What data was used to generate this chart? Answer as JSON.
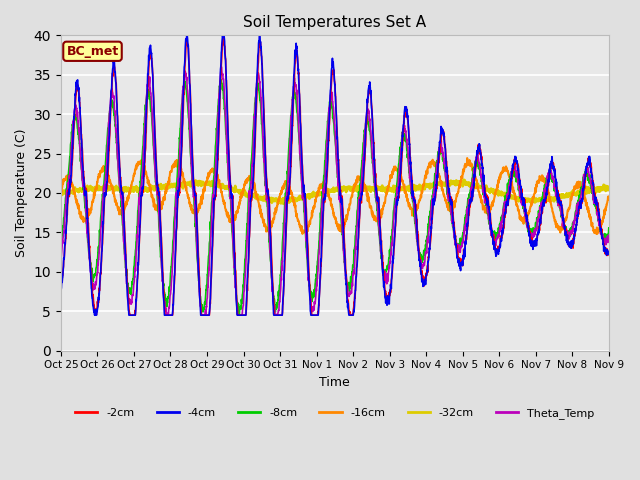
{
  "title": "Soil Temperatures Set A",
  "xlabel": "Time",
  "ylabel": "Soil Temperature (C)",
  "ylim": [
    0,
    40
  ],
  "yticks": [
    0,
    5,
    10,
    15,
    20,
    25,
    30,
    35,
    40
  ],
  "x_labels": [
    "Oct 25",
    "Oct 26",
    "Oct 27",
    "Oct 28",
    "Oct 29",
    "Oct 30",
    "Oct 31",
    "Nov 1",
    "Nov 2",
    "Nov 3",
    "Nov 4",
    "Nov 5",
    "Nov 6",
    "Nov 7",
    "Nov 8",
    "Nov 9"
  ],
  "annotation": "BC_met",
  "annotation_color": "#8B0000",
  "annotation_bg": "#FFFF99",
  "series": {
    "-2cm": {
      "color": "#FF0000",
      "lw": 1.2
    },
    "-4cm": {
      "color": "#0000EE",
      "lw": 1.2
    },
    "-8cm": {
      "color": "#00CC00",
      "lw": 1.2
    },
    "-16cm": {
      "color": "#FF8800",
      "lw": 1.5
    },
    "-32cm": {
      "color": "#DDCC00",
      "lw": 2.0
    },
    "Theta_Temp": {
      "color": "#BB00BB",
      "lw": 1.2
    }
  },
  "legend_order": [
    "-2cm",
    "-4cm",
    "-8cm",
    "-16cm",
    "-32cm",
    "Theta_Temp"
  ],
  "fig_bg": "#E0E0E0",
  "plot_bg": "#E8E8E8"
}
